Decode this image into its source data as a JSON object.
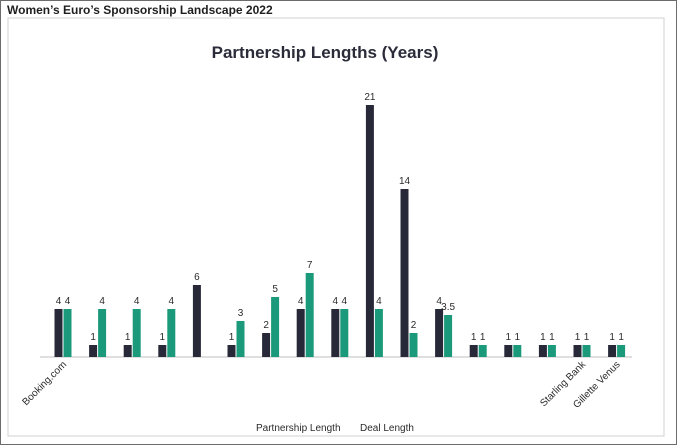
{
  "page": {
    "heading": "Women’s Euro’s Sponsorship Landscape 2022"
  },
  "colors": {
    "partnership": "#272838",
    "deal": "#1b9a7b",
    "axis": "#bfbfbf"
  },
  "chart_data": {
    "type": "bar",
    "title": "Partnership Lengths (Years)",
    "xlabel": "",
    "ylabel": "",
    "ylim": [
      0,
      21
    ],
    "grid": false,
    "legend_position": "bottom",
    "categories": [
      "Booking.com",
      "",
      "",
      "",
      "",
      "",
      "",
      "",
      "",
      "",
      "",
      "",
      "",
      "",
      "",
      "Starling Bank",
      "Gillette Venus"
    ],
    "series": [
      {
        "name": "Partnership Length",
        "values": [
          4,
          1,
          1,
          1,
          6,
          1,
          2,
          4,
          4,
          21,
          14,
          4,
          1,
          1,
          1,
          1,
          1
        ]
      },
      {
        "name": "Deal Length",
        "values": [
          4,
          4,
          4,
          4,
          null,
          3,
          5,
          7,
          4,
          4,
          2,
          3.5,
          1,
          1,
          1,
          1,
          1
        ]
      }
    ]
  }
}
